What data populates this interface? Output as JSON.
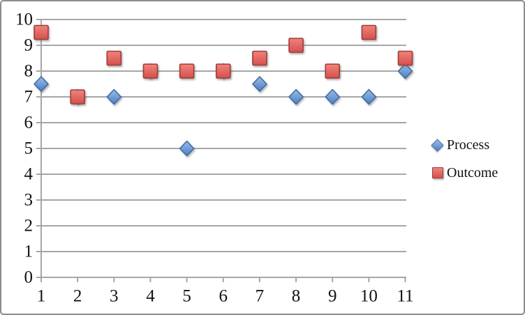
{
  "chart_data": {
    "type": "scatter",
    "title": "",
    "xlabel": "",
    "ylabel": "",
    "x": [
      1,
      2,
      3,
      4,
      5,
      6,
      7,
      8,
      9,
      10,
      11
    ],
    "series": [
      {
        "name": "Process",
        "marker": "diamond",
        "color": "#5c8bd0",
        "values": [
          7.5,
          7,
          7,
          8,
          5,
          8,
          7.5,
          7,
          7,
          7,
          8
        ]
      },
      {
        "name": "Outcome",
        "marker": "square",
        "color": "#db5551",
        "values": [
          9.5,
          7,
          8.5,
          8,
          8,
          8,
          8.5,
          9,
          8,
          9.5,
          8.5
        ]
      }
    ],
    "xlim": [
      1,
      11
    ],
    "ylim": [
      0,
      10
    ],
    "xticks": [
      1,
      2,
      3,
      4,
      5,
      6,
      7,
      8,
      9,
      10,
      11
    ],
    "yticks": [
      0,
      1,
      2,
      3,
      4,
      5,
      6,
      7,
      8,
      9,
      10
    ],
    "grid": "horizontal",
    "gridline_color": "#a6a6a6",
    "legend_position": "right"
  },
  "styles": {
    "background": "#ffffff",
    "border_color": "#8c8c8c",
    "axis_text_color": "#111111",
    "process_fill_top": "#9cbde9",
    "process_fill_bottom": "#4c7ec2",
    "process_stroke": "#3e6ba3",
    "outcome_fill_top": "#f2837d",
    "outcome_fill_bottom": "#d4504c",
    "outcome_stroke": "#9e3b38"
  }
}
